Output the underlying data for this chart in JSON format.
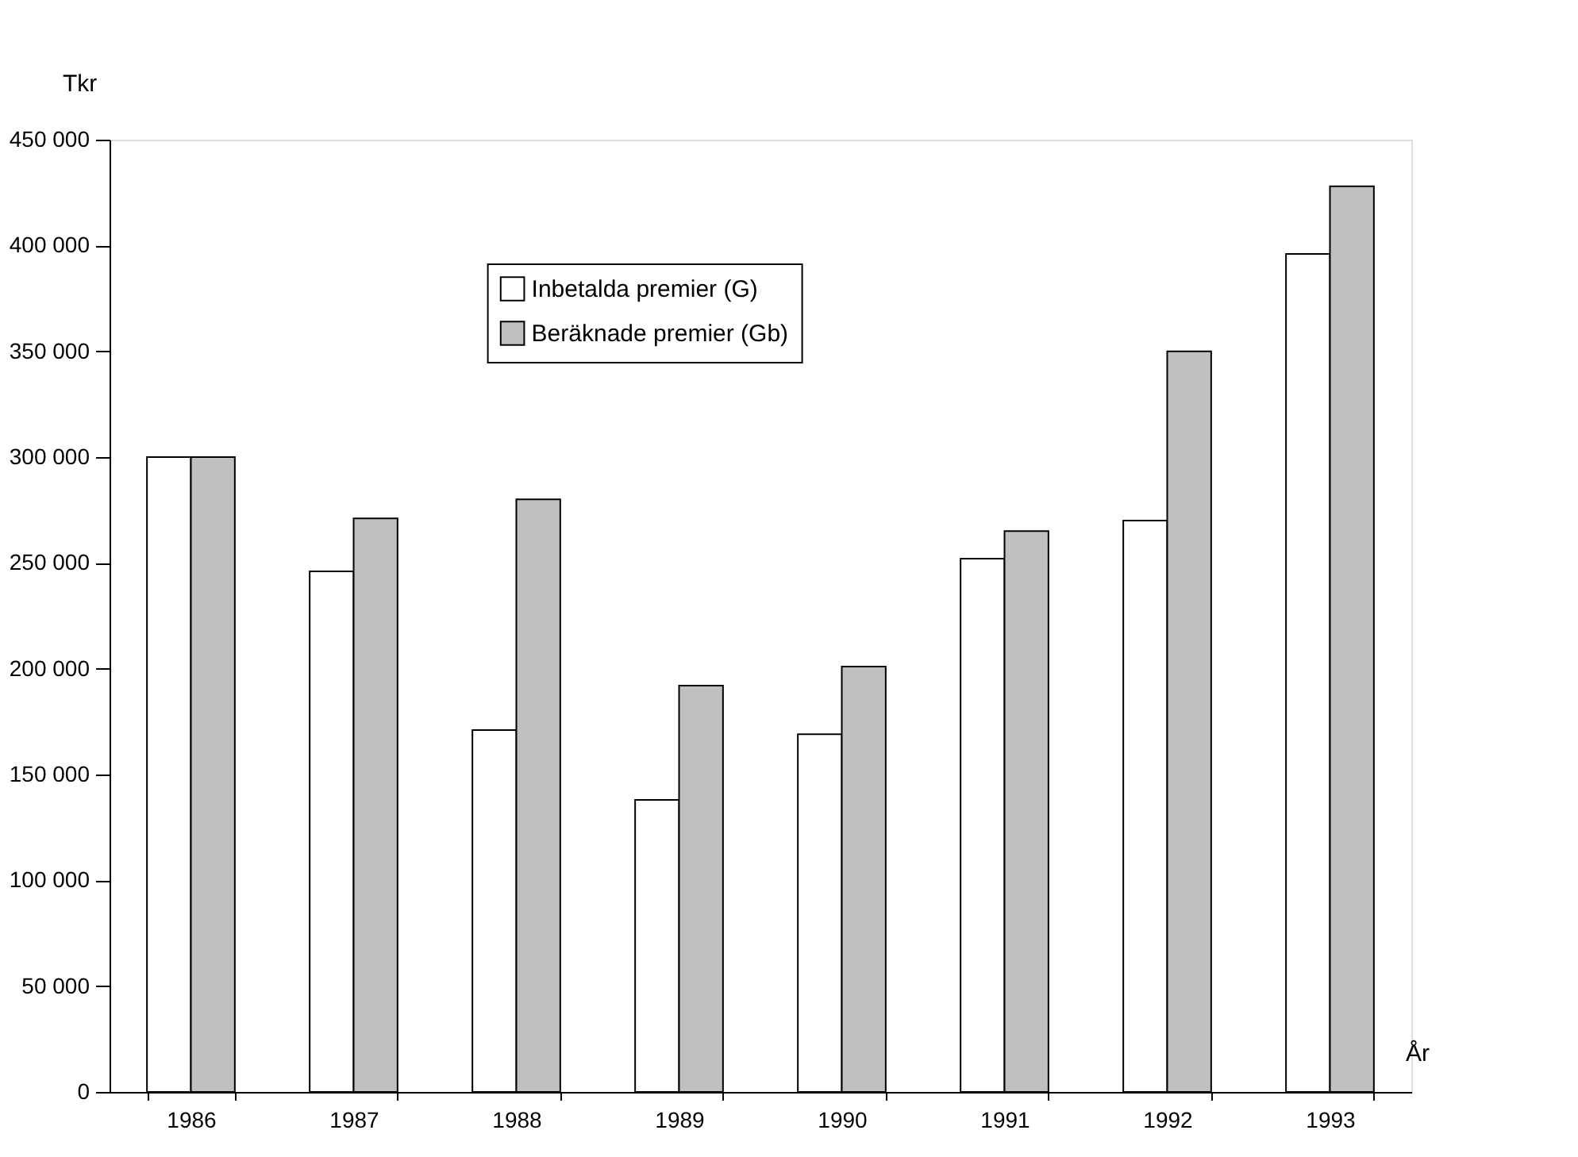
{
  "chart_data": {
    "type": "bar",
    "xlabel": "År",
    "ylabel": "Tkr",
    "categories": [
      "1986",
      "1987",
      "1988",
      "1989",
      "1990",
      "1991",
      "1992",
      "1993"
    ],
    "series": [
      {
        "name": "Inbetalda premier (G)",
        "color": "#ffffff",
        "values": [
          300000,
          246000,
          171000,
          138000,
          169000,
          252000,
          270000,
          396000
        ]
      },
      {
        "name": "Beräknade premier (Gb)",
        "color": "#c0c0c0",
        "values": [
          300000,
          271000,
          280000,
          192000,
          201000,
          265000,
          350000,
          428000
        ]
      }
    ],
    "ylim": [
      0,
      450000
    ],
    "yticks": [
      {
        "value": 0,
        "label": "0"
      },
      {
        "value": 50000,
        "label": "50 000"
      },
      {
        "value": 100000,
        "label": "100 000"
      },
      {
        "value": 150000,
        "label": "150 000"
      },
      {
        "value": 200000,
        "label": "200 000"
      },
      {
        "value": 250000,
        "label": "250 000"
      },
      {
        "value": 300000,
        "label": "300 000"
      },
      {
        "value": 350000,
        "label": "350 000"
      },
      {
        "value": 400000,
        "label": "400 000"
      },
      {
        "value": 450000,
        "label": "450 000"
      }
    ],
    "grid": false,
    "legend": "top"
  }
}
